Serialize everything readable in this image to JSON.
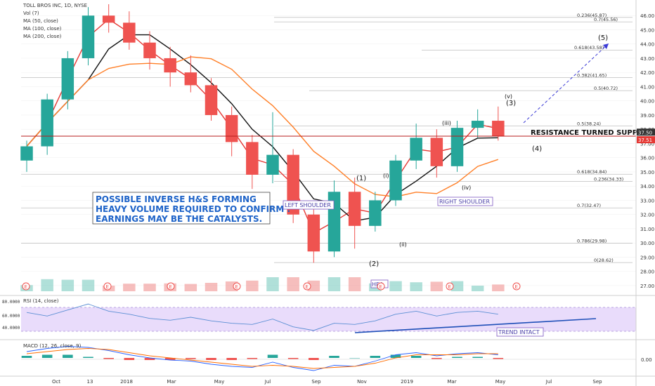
{
  "chart_data": {
    "type": "candlestick",
    "symbol": "TOLL BROS INC, 1D, NYSE",
    "legend": [
      "Vol (7)",
      "MA (50, close)",
      "MA (100, close)",
      "MA (200, close)"
    ],
    "price_axis": {
      "ticks": [
        "46.00",
        "45.00",
        "44.00",
        "43.00",
        "42.00",
        "41.00",
        "40.00",
        "39.00",
        "38.00",
        "37.00",
        "36.00",
        "35.00",
        "34.00",
        "33.00",
        "32.00",
        "31.00",
        "30.00",
        "29.00",
        "28.00",
        "27.00"
      ],
      "ylim": [
        26.6,
        46.9
      ]
    },
    "price_labels": [
      {
        "text": "37.50",
        "value": 37.5,
        "bg": "#333333"
      },
      {
        "text": "37.51",
        "value": 37.51,
        "bg": "#e53935"
      }
    ],
    "fib_levels": [
      {
        "text": "0.236(45.87)",
        "value": 45.87
      },
      {
        "text": "0.7(45.56)",
        "value": 45.56
      },
      {
        "text": "0.618(43.58)",
        "value": 43.58
      },
      {
        "text": "0.382(41.65)",
        "value": 41.65
      },
      {
        "text": "0.5(40.72)",
        "value": 40.72
      },
      {
        "text": "0.5(38.24)",
        "value": 38.24
      },
      {
        "text": "0.618(34.84)",
        "value": 34.84
      },
      {
        "text": "0.236(34.33)",
        "value": 34.33
      },
      {
        "text": "0.7(32.47)",
        "value": 32.47
      },
      {
        "text": "0.786(29.98)",
        "value": 29.98
      },
      {
        "text": "0(28.62)",
        "value": 28.62
      }
    ],
    "time_axis": [
      "Oct",
      "13",
      "2018",
      "Mar",
      "May",
      "Jul",
      "Sep",
      "Nov",
      "2019",
      "Mar",
      "May",
      "Jul",
      "Sep"
    ],
    "candles": [
      {
        "t": "2017-08",
        "o": 35.8,
        "h": 37.2,
        "l": 35.0,
        "c": 36.8
      },
      {
        "t": "2017-09",
        "o": 36.8,
        "h": 40.5,
        "l": 36.2,
        "c": 40.1
      },
      {
        "t": "2017-10",
        "o": 40.1,
        "h": 43.5,
        "l": 39.4,
        "c": 43.0
      },
      {
        "t": "2017-11",
        "o": 43.0,
        "h": 46.6,
        "l": 42.5,
        "c": 46.0
      },
      {
        "t": "2018-01",
        "o": 46.0,
        "h": 46.8,
        "l": 44.8,
        "c": 45.5
      },
      {
        "t": "2018-02",
        "o": 45.5,
        "h": 46.3,
        "l": 43.6,
        "c": 44.1
      },
      {
        "t": "2018-03",
        "o": 44.1,
        "h": 44.9,
        "l": 42.2,
        "c": 43.0
      },
      {
        "t": "2018-04",
        "o": 43.0,
        "h": 43.8,
        "l": 41.0,
        "c": 42.0
      },
      {
        "t": "2018-05",
        "o": 42.0,
        "h": 43.2,
        "l": 40.6,
        "c": 41.1
      },
      {
        "t": "2018-06",
        "o": 41.1,
        "h": 41.6,
        "l": 38.6,
        "c": 39.0
      },
      {
        "t": "2018-07",
        "o": 39.0,
        "h": 39.6,
        "l": 36.1,
        "c": 37.1
      },
      {
        "t": "2018-08",
        "o": 37.1,
        "h": 37.6,
        "l": 33.8,
        "c": 34.8
      },
      {
        "t": "2018-09",
        "o": 34.8,
        "h": 39.2,
        "l": 34.2,
        "c": 36.2
      },
      {
        "t": "2018-10",
        "o": 36.2,
        "h": 36.6,
        "l": 31.4,
        "c": 32.0
      },
      {
        "t": "2018-10b",
        "o": 32.0,
        "h": 32.4,
        "l": 28.6,
        "c": 29.4
      },
      {
        "t": "2018-11",
        "o": 29.4,
        "h": 34.4,
        "l": 29.0,
        "c": 33.6
      },
      {
        "t": "2018-11b",
        "o": 33.6,
        "h": 34.6,
        "l": 29.6,
        "c": 31.2
      },
      {
        "t": "2018-12",
        "o": 31.2,
        "h": 33.6,
        "l": 30.8,
        "c": 33.0
      },
      {
        "t": "2019-01",
        "o": 33.0,
        "h": 36.2,
        "l": 32.6,
        "c": 35.8
      },
      {
        "t": "2019-02",
        "o": 35.8,
        "h": 38.4,
        "l": 35.2,
        "c": 37.4
      },
      {
        "t": "2019-03",
        "o": 37.4,
        "h": 38.0,
        "l": 34.6,
        "c": 35.4
      },
      {
        "t": "2019-04",
        "o": 35.4,
        "h": 38.6,
        "l": 35.0,
        "c": 38.1
      },
      {
        "t": "2019-04b",
        "o": 38.1,
        "h": 39.4,
        "l": 37.4,
        "c": 38.6
      },
      {
        "t": "2019-05",
        "o": 38.6,
        "h": 39.6,
        "l": 37.2,
        "c": 37.5
      }
    ],
    "rsi": {
      "label": "RSI (14, close)",
      "ticks": [
        "80.0000",
        "60.0000",
        "40.0000"
      ],
      "ylim": [
        15,
        85
      ],
      "values": [
        58,
        52,
        62,
        72,
        60,
        55,
        48,
        45,
        50,
        44,
        40,
        38,
        47,
        34,
        28,
        40,
        38,
        44,
        55,
        60,
        52,
        58,
        60,
        55
      ]
    },
    "macd": {
      "label": "MACD (12, 26, close, 9)",
      "ticks": [
        "0.00"
      ],
      "ylim": [
        -1.6,
        1.6
      ],
      "macd": [
        0.6,
        0.9,
        1.1,
        1.0,
        0.7,
        0.3,
        0.0,
        -0.2,
        -0.3,
        -0.6,
        -0.8,
        -0.9,
        -0.4,
        -0.9,
        -1.2,
        -0.7,
        -0.8,
        -0.3,
        0.3,
        0.5,
        0.2,
        0.4,
        0.5,
        0.3
      ],
      "signal": [
        0.4,
        0.6,
        0.8,
        0.9,
        0.8,
        0.5,
        0.2,
        0.0,
        -0.2,
        -0.4,
        -0.6,
        -0.8,
        -0.7,
        -0.8,
        -1.0,
        -0.9,
        -0.8,
        -0.5,
        0.0,
        0.3,
        0.3,
        0.3,
        0.4,
        0.4
      ]
    }
  },
  "annotations": {
    "note_lines": [
      "POSSIBLE INVERSE H&S FORMING",
      "HEAVY VOLUME REQUIRED TO CONFIRM .",
      "EARNINGS MAY BE THE CATALYSTS."
    ],
    "resistance": "RESISTANCE TURNED SUPPORT",
    "left_shoulder": "LEFT SHOULDER",
    "right_shoulder": "RIGHT SHOULDER",
    "head": "HEA",
    "trend": "TREND INTACT",
    "waves": [
      "(1)",
      "(2)",
      "(3)",
      "(4)",
      "(5)",
      "(i)",
      "(ii)",
      "(iii)",
      "(iv)",
      "(v)"
    ]
  },
  "colors": {
    "up": "#26a69a",
    "down": "#ef5350",
    "ma50": "#e53935",
    "ma100": "#111111",
    "ma200": "#ff7f27",
    "note": "#1e63c8",
    "rsi_band": "#e9dcfb"
  }
}
